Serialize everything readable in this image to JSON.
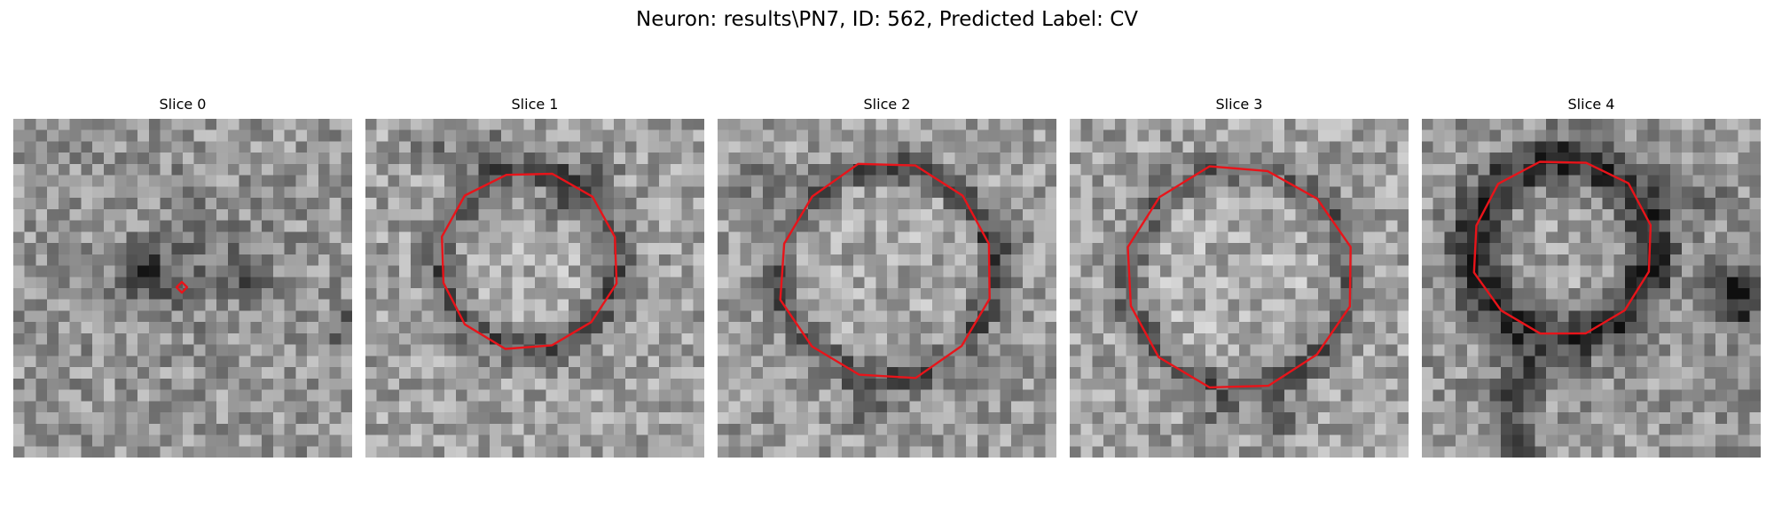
{
  "figure": {
    "title": "Neuron: results\\PN7, ID: 562, Predicted Label: CV",
    "contour_color": "#e8141a"
  },
  "panels": [
    {
      "title": "Slice 0",
      "contour": "marker"
    },
    {
      "title": "Slice 1",
      "contour": "octagon"
    },
    {
      "title": "Slice 2",
      "contour": "octagon"
    },
    {
      "title": "Slice 3",
      "contour": "octagon"
    },
    {
      "title": "Slice 4",
      "contour": "octagon"
    }
  ]
}
